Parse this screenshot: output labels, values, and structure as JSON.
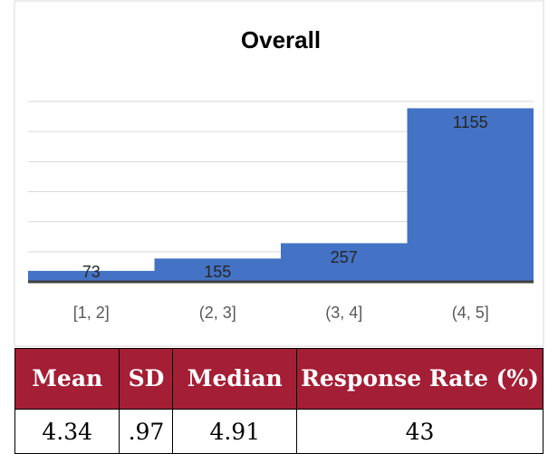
{
  "chart_data": {
    "type": "bar",
    "title": "Overall",
    "categories": [
      "[1, 2]",
      "(2, 3]",
      "(3, 4]",
      "(4, 5]"
    ],
    "values": [
      73,
      155,
      257,
      1155
    ],
    "color": "#4472c4",
    "ylim": [
      0,
      1200
    ],
    "yticks": [
      0,
      200,
      400,
      600,
      800,
      1000,
      1200
    ],
    "grid": true
  },
  "table": {
    "header": [
      "Mean",
      "SD",
      "Median",
      "Response Rate (%)"
    ],
    "rows": [
      [
        "4.34",
        ".97",
        "4.91",
        "43"
      ]
    ]
  }
}
